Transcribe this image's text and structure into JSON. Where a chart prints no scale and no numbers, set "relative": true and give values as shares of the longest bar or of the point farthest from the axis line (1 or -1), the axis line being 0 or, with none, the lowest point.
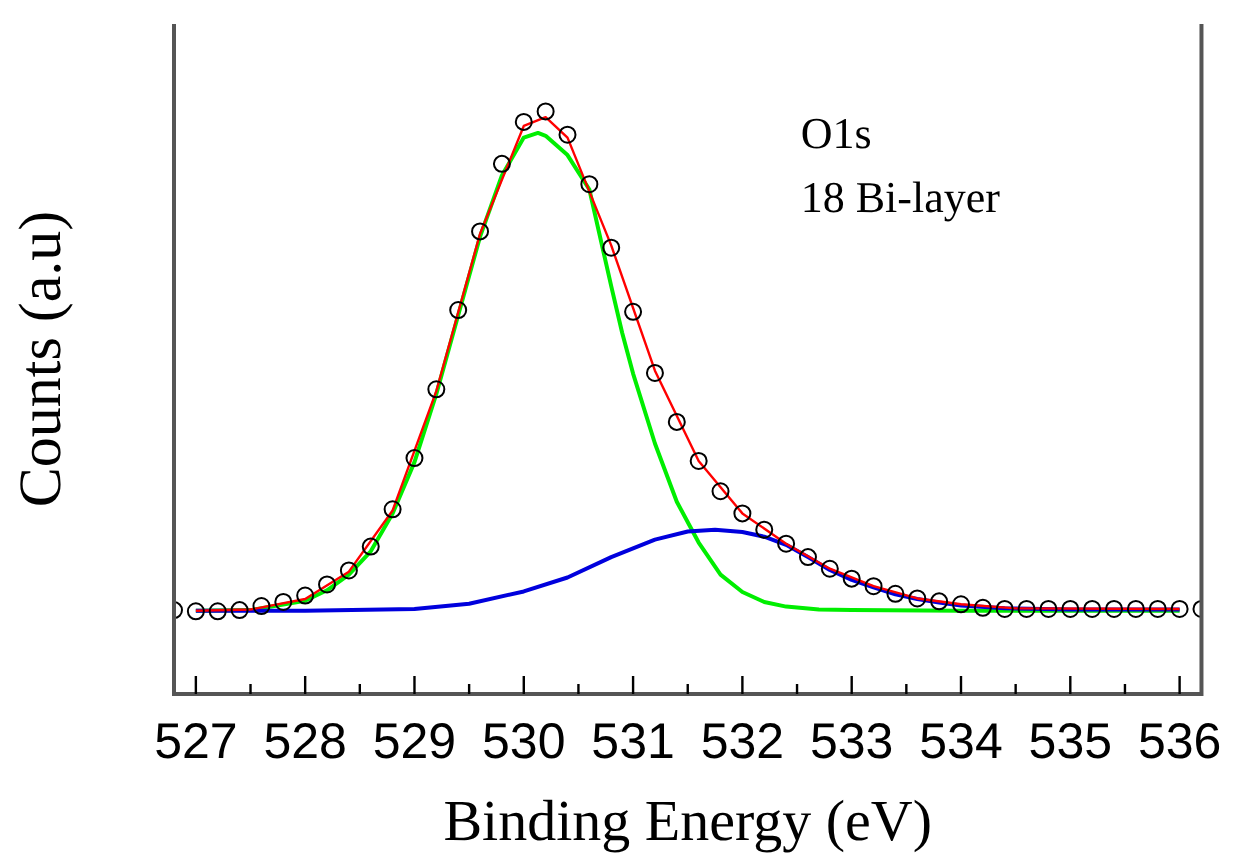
{
  "chart_data": {
    "type": "scatter",
    "xlabel": "Binding Energy (eV)",
    "ylabel": "Counts (a.u)",
    "annotations": [
      "O1s",
      "18 Bi-layer"
    ],
    "relative": true,
    "tick_labels": "x",
    "grid": false,
    "legend": false,
    "xlim": [
      526.8,
      536.2
    ],
    "xticks": [
      527,
      {
        "value": 527.5,
        "label": null
      },
      528,
      {
        "value": 528.5,
        "label": null
      },
      529,
      {
        "value": 529.5,
        "label": null
      },
      530,
      {
        "value": 530.5,
        "label": null
      },
      531,
      {
        "value": 531.5,
        "label": null
      },
      532,
      {
        "value": 532.5,
        "label": null
      },
      533,
      {
        "value": 533.5,
        "label": null
      },
      534,
      {
        "value": 534.5,
        "label": null
      },
      535,
      {
        "value": 535.5,
        "label": null
      },
      536
    ],
    "series": [
      {
        "type": "line",
        "color": "#00ee00",
        "marker": "none",
        "x": [
          527,
          527.5,
          528,
          528.2,
          528.4,
          528.6,
          528.8,
          529,
          529.2,
          529.4,
          529.6,
          529.8,
          530,
          530.13,
          530.2,
          530.4,
          530.6,
          530.8,
          530.9,
          531,
          531.2,
          531.4,
          531.6,
          531.8,
          532,
          532.2,
          532.4,
          532.7,
          533,
          534,
          535,
          536
        ],
        "values": [
          0.143,
          0.144,
          0.16,
          0.178,
          0.205,
          0.245,
          0.31,
          0.398,
          0.515,
          0.65,
          0.785,
          0.89,
          0.955,
          0.963,
          0.958,
          0.925,
          0.866,
          0.7,
          0.62,
          0.55,
          0.43,
          0.33,
          0.26,
          0.205,
          0.175,
          0.158,
          0.15,
          0.145,
          0.144,
          0.143,
          0.143,
          0.143
        ]
      },
      {
        "type": "line",
        "color": "#0000dd",
        "marker": "none",
        "x": [
          527,
          528,
          529,
          529.5,
          530,
          530.4,
          530.8,
          531.2,
          531.5,
          531.75,
          532,
          532.2,
          532.4,
          532.6,
          532.8,
          533,
          533.2,
          533.4,
          533.6,
          533.8,
          534,
          534.4,
          535,
          536
        ],
        "values": [
          0.143,
          0.143,
          0.146,
          0.155,
          0.176,
          0.2,
          0.235,
          0.265,
          0.279,
          0.282,
          0.278,
          0.27,
          0.256,
          0.235,
          0.213,
          0.196,
          0.183,
          0.171,
          0.163,
          0.157,
          0.152,
          0.147,
          0.145,
          0.145
        ]
      },
      {
        "type": "line",
        "color": "#ff0000",
        "marker": "none",
        "x": [
          527,
          527.5,
          528,
          528.4,
          528.8,
          529.2,
          529.6,
          530,
          530.2,
          530.4,
          530.8,
          531.2,
          531.6,
          532,
          532.4,
          532.8,
          533.2,
          533.6,
          534,
          534.5,
          536
        ],
        "values": [
          0.143,
          0.145,
          0.163,
          0.21,
          0.315,
          0.52,
          0.79,
          0.975,
          0.99,
          0.955,
          0.77,
          0.555,
          0.4,
          0.31,
          0.258,
          0.215,
          0.185,
          0.164,
          0.154,
          0.147,
          0.146
        ]
      },
      {
        "color": "#000000",
        "marker": "circle",
        "x": [
          526.8,
          527,
          527.2,
          527.4,
          527.6,
          527.8,
          528,
          528.2,
          528.4,
          528.6,
          528.8,
          529,
          529.2,
          529.4,
          529.6,
          529.8,
          530,
          530.2,
          530.4,
          530.6,
          530.8,
          531,
          531.2,
          531.4,
          531.6,
          531.8,
          532,
          532.2,
          532.4,
          532.6,
          532.8,
          533,
          533.2,
          533.4,
          533.6,
          533.8,
          534,
          534.2,
          534.4,
          534.6,
          534.8,
          535,
          535.2,
          535.4,
          535.6,
          535.8,
          536,
          536.2
        ],
        "values": [
          0.144,
          0.142,
          0.142,
          0.144,
          0.151,
          0.158,
          0.169,
          0.188,
          0.212,
          0.253,
          0.317,
          0.405,
          0.523,
          0.659,
          0.794,
          0.91,
          0.982,
          1,
          0.96,
          0.875,
          0.766,
          0.656,
          0.551,
          0.467,
          0.4,
          0.348,
          0.31,
          0.282,
          0.258,
          0.235,
          0.215,
          0.198,
          0.185,
          0.172,
          0.164,
          0.159,
          0.154,
          0.148,
          0.146,
          0.146,
          0.146,
          0.146,
          0.146,
          0.146,
          0.146,
          0.146,
          0.146,
          0.146
        ]
      }
    ]
  }
}
